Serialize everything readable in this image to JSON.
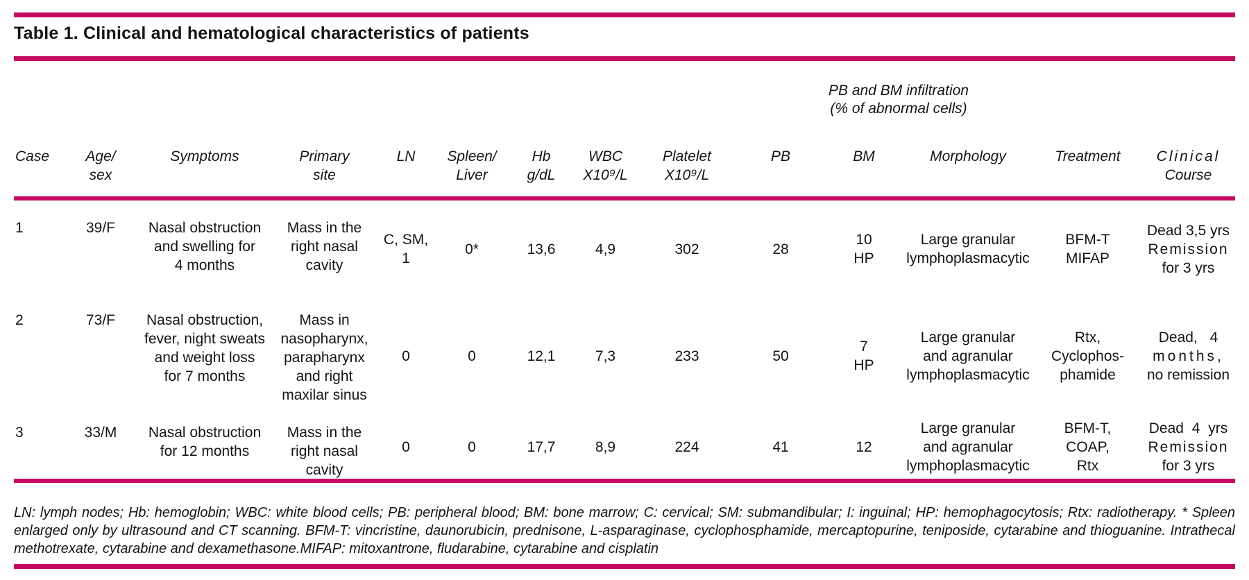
{
  "title": "Table 1. Clinical and hematological characteristics of patients",
  "colors": {
    "accent": "#c60a64",
    "text": "#141414"
  },
  "table": {
    "group_header": {
      "line1": "PB and BM infiltration",
      "line2": "(% of abnormal cells)"
    },
    "columns": [
      {
        "id": "case",
        "line1": "Case",
        "line2": ""
      },
      {
        "id": "age_sex",
        "line1": "Age/",
        "line2": "sex"
      },
      {
        "id": "symptoms",
        "line1": "Symptoms",
        "line2": ""
      },
      {
        "id": "primary_site",
        "line1": "Primary",
        "line2": "site"
      },
      {
        "id": "ln",
        "line1": "LN",
        "line2": ""
      },
      {
        "id": "spleen_liver",
        "line1": "Spleen/",
        "line2": "Liver"
      },
      {
        "id": "hb",
        "line1": "Hb",
        "line2": "g/dL"
      },
      {
        "id": "wbc",
        "line1": "WBC",
        "line2": "X10⁹/L"
      },
      {
        "id": "platelet",
        "line1": "Platelet",
        "line2": "X10⁹/L"
      },
      {
        "id": "pb",
        "line1": "PB",
        "line2": ""
      },
      {
        "id": "bm",
        "line1": "BM",
        "line2": ""
      },
      {
        "id": "morphology",
        "line1": "Morphology",
        "line2": ""
      },
      {
        "id": "treatment",
        "line1": "Treatment",
        "line2": ""
      },
      {
        "id": "clinical_course",
        "line1": "Clinical",
        "line2": "Course"
      }
    ],
    "rows": [
      {
        "case": "1",
        "age_sex": "39/F",
        "symptoms": [
          "Nasal obstruction",
          "and swelling for",
          "4 months"
        ],
        "primary_site": [
          "Mass in the",
          "right nasal",
          "cavity"
        ],
        "ln": "C, SM, 1",
        "spleen_liver": "0*",
        "hb": "13,6",
        "wbc": "4,9",
        "platelet": "302",
        "pb": "28",
        "bm": [
          "10",
          "HP"
        ],
        "morphology": [
          "Large granular",
          "lymphoplasmacytic"
        ],
        "treatment": [
          "BFM-T",
          "MIFAP"
        ],
        "clinical_course": [
          "Dead 3,5 yrs",
          "Remission",
          "for 3 yrs"
        ]
      },
      {
        "case": "2",
        "age_sex": "73/F",
        "symptoms": [
          "Nasal obstruction,",
          "fever, night sweats",
          "and weight loss",
          "for 7 months"
        ],
        "primary_site": [
          "Mass in",
          "nasopharynx,",
          "parapharynx",
          "and right",
          "maxilar sinus"
        ],
        "ln": "0",
        "spleen_liver": "0",
        "hb": "12,1",
        "wbc": "7,3",
        "platelet": "233",
        "pb": "50",
        "bm": [
          "7",
          "HP"
        ],
        "morphology": [
          "Large granular",
          "and agranular",
          "lymphoplasmacytic"
        ],
        "treatment": [
          "Rtx,",
          "Cyclophos-",
          "phamide"
        ],
        "clinical_course": [
          "Dead, 4",
          "months,",
          "no remission"
        ]
      },
      {
        "case": "3",
        "age_sex": "33/M",
        "symptoms": [
          "Nasal obstruction",
          "for 12 months"
        ],
        "primary_site": [
          "Mass in the",
          "right nasal",
          "cavity"
        ],
        "ln": "0",
        "spleen_liver": "0",
        "hb": "17,7",
        "wbc": "8,9",
        "platelet": "224",
        "pb": "41",
        "bm": "12",
        "morphology": [
          "Large granular",
          "and agranular",
          "lymphoplasmacytic"
        ],
        "treatment": [
          "BFM-T,",
          "COAP,",
          "Rtx"
        ],
        "clinical_course": [
          "Dead 4 yrs",
          "Remission",
          "for 3 yrs"
        ]
      }
    ]
  },
  "footnote": "LN: lymph nodes; Hb: hemoglobin; WBC: white blood cells; PB: peripheral blood; BM: bone marrow; C: cervical; SM: submandibular; I: inguinal; HP: hemophagocytosis; Rtx: radiotherapy. * Spleen enlarged only by ultrasound and CT scanning. BFM-T: vincristine, daunorubicin, prednisone, L-asparaginase, cyclophosphamide, mercaptopurine, teniposide, cytarabine and thioguanine. Intrathecal methotrexate, cytarabine and dexamethasone.MIFAP: mitoxantrone, fludarabine, cytarabine and cisplatin"
}
